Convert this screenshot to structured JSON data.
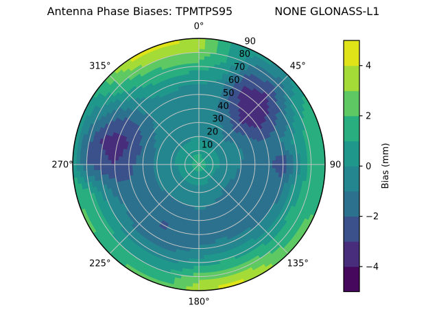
{
  "title": "Antenna Phase Biases: TPMTPS95            NONE GLONASS-L1",
  "polar": {
    "azimuth_labels": [
      "0°",
      "45°",
      "90",
      "135°",
      "180°",
      "225°",
      "270°",
      "315°"
    ],
    "radial_tick_labels": [
      "10",
      "20",
      "30",
      "40",
      "50",
      "60",
      "70",
      "80",
      "90"
    ]
  },
  "colorbar": {
    "label": "Bias (mm)",
    "tick_labels": [
      "4",
      "2",
      "0",
      "−2",
      "−4"
    ],
    "tick_values": [
      4,
      2,
      0,
      -2,
      -4
    ],
    "range": [
      -5,
      5
    ],
    "band_colors": [
      "#46085c",
      "#472d7b",
      "#3b518b",
      "#2c718e",
      "#24868e",
      "#1f988b",
      "#29af7f",
      "#5ec962",
      "#a5db36",
      "#dfe318"
    ]
  },
  "chart_data": {
    "type": "heatmap",
    "subtype": "polar-contourf",
    "title": "Antenna Phase Biases: TPMTPS95            NONE GLONASS-L1",
    "colormap": "viridis",
    "clabel": "Bias (mm)",
    "clim": [
      -5,
      5
    ],
    "contour_levels": [
      -5,
      -4,
      -3,
      -2,
      -1,
      0,
      1,
      2,
      3,
      4,
      5
    ],
    "azimuth_deg": [
      0,
      15,
      30,
      45,
      60,
      75,
      90,
      105,
      120,
      135,
      150,
      165,
      180,
      195,
      210,
      225,
      240,
      255,
      270,
      285,
      300,
      315,
      330,
      345
    ],
    "zenith_deg": [
      0,
      10,
      20,
      30,
      40,
      50,
      60,
      70,
      80,
      90
    ],
    "bias_mm": [
      [
        1.4,
        0.9,
        -0.1,
        -0.5,
        -0.6,
        -0.5,
        0.2,
        1.4,
        3.0,
        3.6
      ],
      [
        1.4,
        0.8,
        -0.2,
        -0.6,
        -0.8,
        -0.7,
        -0.2,
        0.6,
        1.2,
        1.0
      ],
      [
        1.4,
        0.6,
        -0.4,
        -0.8,
        -1.6,
        -2.6,
        -3.2,
        -2.6,
        -1.2,
        0.4
      ],
      [
        1.4,
        0.5,
        -0.6,
        -1.4,
        -2.8,
        -3.8,
        -3.7,
        -3.0,
        -1.6,
        -0.2
      ],
      [
        1.4,
        0.5,
        -0.6,
        -1.0,
        -2.0,
        -3.0,
        -2.6,
        -1.4,
        0.6,
        1.4
      ],
      [
        1.4,
        0.5,
        -0.6,
        -0.9,
        -1.2,
        -1.5,
        -1.0,
        0.3,
        1.4,
        1.8
      ],
      [
        1.4,
        0.5,
        -0.7,
        -1.0,
        -1.3,
        -1.7,
        -2.8,
        -0.6,
        1.2,
        1.8
      ],
      [
        1.4,
        0.4,
        -0.7,
        -1.1,
        -1.5,
        -1.8,
        -1.3,
        0.4,
        1.7,
        1.8
      ],
      [
        1.4,
        0.4,
        -0.8,
        -1.2,
        -1.6,
        -1.9,
        -1.2,
        0.6,
        1.8,
        2.2
      ],
      [
        1.4,
        0.4,
        -0.8,
        -1.2,
        -1.6,
        -1.8,
        -1.0,
        0.4,
        1.5,
        2.6
      ],
      [
        1.4,
        0.4,
        -0.7,
        -1.1,
        -1.4,
        -1.6,
        -0.8,
        0.6,
        2.4,
        3.6
      ],
      [
        1.4,
        0.5,
        -0.6,
        -1.0,
        -1.3,
        -1.5,
        -0.6,
        0.9,
        2.6,
        4.6
      ],
      [
        1.4,
        0.6,
        -0.5,
        -0.9,
        -1.3,
        -1.6,
        -0.9,
        0.4,
        2.6,
        3.8
      ],
      [
        1.4,
        0.6,
        -0.5,
        -1.0,
        -1.5,
        -1.9,
        -1.5,
        -0.3,
        1.2,
        2.2
      ],
      [
        1.4,
        0.6,
        -0.5,
        -1.0,
        -1.6,
        -2.1,
        -1.7,
        -0.6,
        1.0,
        2.4
      ],
      [
        1.4,
        0.6,
        -0.5,
        -1.0,
        -1.5,
        -1.9,
        -1.5,
        -0.4,
        1.0,
        1.8
      ],
      [
        1.4,
        0.6,
        -0.5,
        -0.9,
        -1.3,
        -1.7,
        -1.1,
        0.2,
        1.4,
        2.2
      ],
      [
        1.4,
        0.6,
        -0.5,
        -0.9,
        -1.4,
        -1.9,
        -1.7,
        -0.5,
        1.2,
        2.0
      ],
      [
        1.4,
        0.7,
        -0.4,
        -0.8,
        -1.5,
        -2.3,
        -3.0,
        -2.6,
        -2.0,
        0.5
      ],
      [
        1.4,
        0.7,
        -0.3,
        -0.8,
        -1.7,
        -2.9,
        -3.6,
        -3.3,
        -1.8,
        0.3
      ],
      [
        1.4,
        0.7,
        -0.3,
        -0.6,
        -1.2,
        -2.2,
        -2.4,
        -1.6,
        -0.2,
        0.6
      ],
      [
        1.4,
        0.7,
        -0.2,
        -0.5,
        -0.8,
        -1.0,
        -0.5,
        0.5,
        1.8,
        2.6
      ],
      [
        1.4,
        0.8,
        -0.2,
        -0.4,
        -0.6,
        -0.5,
        0.4,
        1.4,
        2.8,
        4.4
      ],
      [
        1.4,
        0.8,
        -0.1,
        -0.4,
        -0.6,
        -0.5,
        0.3,
        1.5,
        3.0,
        4.4
      ]
    ]
  }
}
